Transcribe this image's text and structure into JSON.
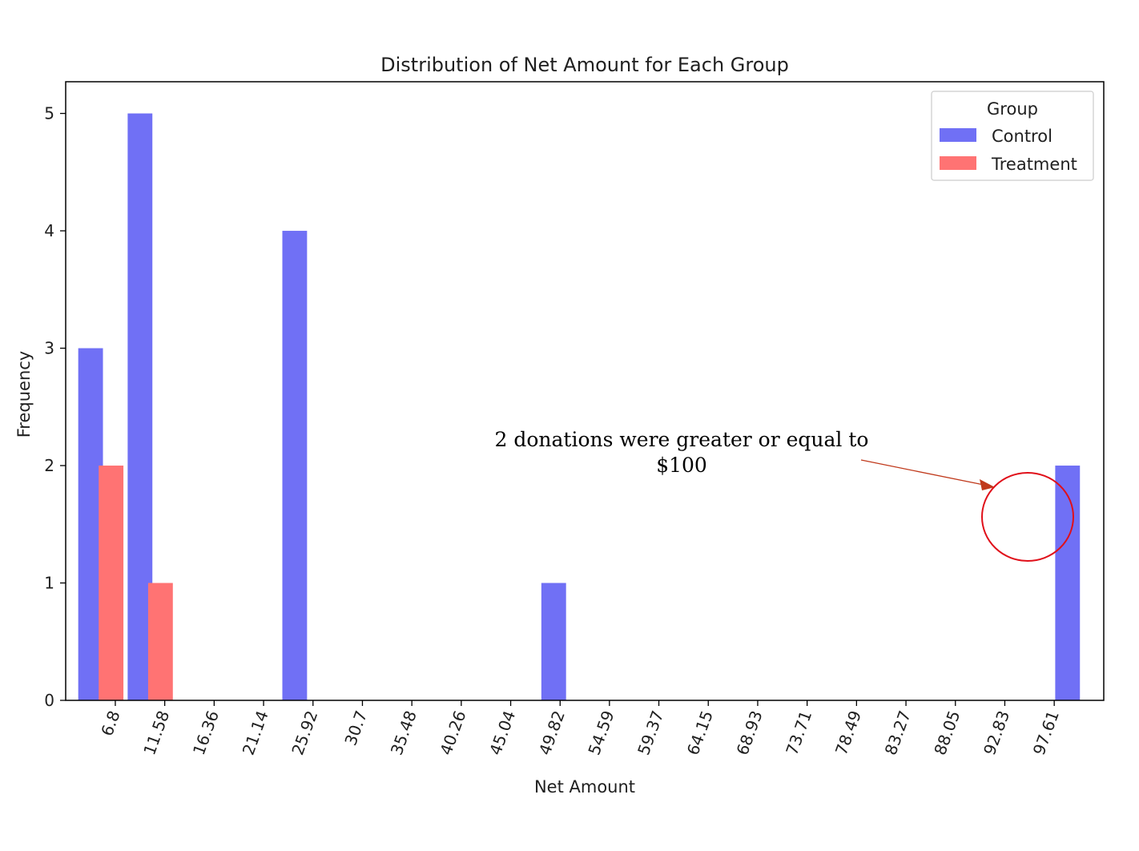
{
  "chart_data": {
    "type": "bar",
    "title": "Distribution of Net Amount for Each Group",
    "xlabel": "Net Amount",
    "ylabel": "Frequency",
    "x_tick_labels": [
      "6.8",
      "11.58",
      "16.36",
      "21.14",
      "25.92",
      "30.7",
      "35.48",
      "40.26",
      "45.04",
      "49.82",
      "54.59",
      "59.37",
      "64.15",
      "68.93",
      "73.71",
      "78.49",
      "83.27",
      "88.05",
      "92.83",
      "97.61"
    ],
    "xlim": [
      2.0,
      102.4
    ],
    "ylim": [
      0,
      5.27
    ],
    "y_ticks": [
      0,
      1,
      2,
      3,
      4,
      5
    ],
    "bin_width": 4.78,
    "series": [
      {
        "name": "Control",
        "color": "#7070f5",
        "bins": [
          {
            "x": 4.41,
            "count": 3
          },
          {
            "x": 9.19,
            "count": 5
          },
          {
            "x": 24.15,
            "count": 4
          },
          {
            "x": 49.2,
            "count": 1
          },
          {
            "x": 98.9,
            "count": 2
          }
        ]
      },
      {
        "name": "Treatment",
        "color": "#ff7373",
        "bins": [
          {
            "x": 6.39,
            "count": 2
          },
          {
            "x": 11.17,
            "count": 1
          }
        ]
      }
    ],
    "legend": {
      "title": "Group",
      "placement": "top-right"
    },
    "annotation": {
      "lines": [
        "2 donations were greater or equal to",
        "$100"
      ],
      "arrow_color": "#c0391b",
      "highlight_color": "#e0101a"
    },
    "grid": false
  }
}
